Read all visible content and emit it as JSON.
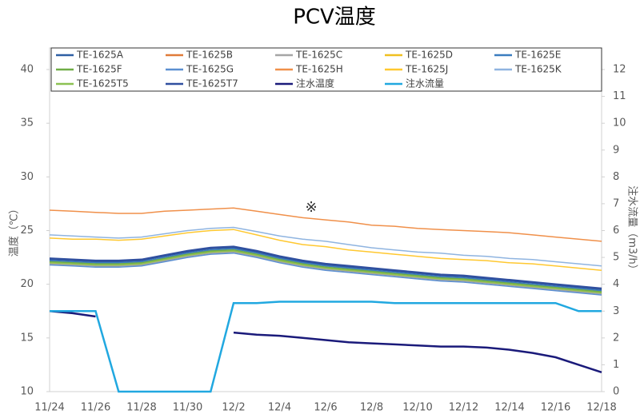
{
  "chart_data": {
    "type": "line",
    "title": "PCV温度",
    "y_label": "温度（℃）",
    "y2_label": "注水流量（m3/h）",
    "annotation": "※",
    "categories": [
      "11/24",
      null,
      "11/26",
      null,
      "11/28",
      null,
      "11/30",
      null,
      "12/2",
      null,
      "12/4",
      null,
      "12/6",
      null,
      "12/8",
      null,
      "12/10",
      null,
      "12/12",
      null,
      "12/14",
      null,
      "12/16",
      null,
      "12/18"
    ],
    "ylim": [
      10,
      40
    ],
    "yticks": [
      10,
      15,
      20,
      25,
      30,
      35,
      40
    ],
    "y2lim": [
      0,
      12
    ],
    "y2ticks": [
      0,
      1,
      2,
      3,
      4,
      5,
      6,
      7,
      8,
      9,
      10,
      11,
      12
    ],
    "grid": false,
    "legend": "top",
    "series": [
      {
        "name": "TE-1625A",
        "color": "#2e5fa3",
        "values": [
          22.3,
          22.2,
          22.1,
          22.1,
          22.2,
          22.6,
          23.0,
          23.3,
          23.4,
          23.0,
          22.5,
          22.1,
          21.8,
          21.6,
          21.4,
          21.2,
          21.0,
          20.8,
          20.7,
          20.5,
          20.3,
          20.1,
          19.9,
          19.7,
          19.5
        ]
      },
      {
        "name": "TE-1625B",
        "color": "#e07b39",
        "values": [
          22.1,
          22.0,
          21.9,
          21.9,
          22.0,
          22.4,
          22.8,
          23.1,
          23.2,
          22.8,
          22.3,
          21.9,
          21.6,
          21.4,
          21.2,
          21.0,
          20.8,
          20.6,
          20.5,
          20.3,
          20.1,
          19.9,
          19.7,
          19.5,
          19.3
        ]
      },
      {
        "name": "TE-1625C",
        "color": "#a5a5a5",
        "values": [
          21.9,
          21.8,
          21.7,
          21.7,
          21.8,
          22.2,
          22.6,
          22.9,
          23.0,
          22.6,
          22.1,
          21.7,
          21.4,
          21.2,
          21.0,
          20.8,
          20.6,
          20.4,
          20.3,
          20.1,
          19.9,
          19.7,
          19.5,
          19.3,
          19.1
        ]
      },
      {
        "name": "TE-1625D",
        "color": "#f0c020",
        "values": [
          22.0,
          21.9,
          21.8,
          21.8,
          21.9,
          22.3,
          22.7,
          23.0,
          23.1,
          22.7,
          22.2,
          21.8,
          21.5,
          21.3,
          21.1,
          20.9,
          20.7,
          20.5,
          20.4,
          20.2,
          20.0,
          19.8,
          19.6,
          19.4,
          19.2
        ]
      },
      {
        "name": "TE-1625E",
        "color": "#3b7dbf",
        "values": [
          22.2,
          22.1,
          22.0,
          22.0,
          22.1,
          22.5,
          22.9,
          23.2,
          23.3,
          22.9,
          22.4,
          22.0,
          21.7,
          21.5,
          21.3,
          21.1,
          20.9,
          20.7,
          20.6,
          20.4,
          20.2,
          20.0,
          19.8,
          19.6,
          19.4
        ]
      },
      {
        "name": "TE-1625F",
        "color": "#70ad47",
        "values": [
          22.1,
          22.0,
          21.9,
          21.9,
          22.0,
          22.4,
          22.8,
          23.1,
          23.2,
          22.8,
          22.3,
          21.9,
          21.6,
          21.4,
          21.2,
          21.0,
          20.8,
          20.6,
          20.5,
          20.3,
          20.1,
          19.9,
          19.7,
          19.5,
          19.3
        ]
      },
      {
        "name": "TE-1625G",
        "color": "#5b8fd1",
        "values": [
          21.8,
          21.7,
          21.6,
          21.6,
          21.7,
          22.1,
          22.5,
          22.8,
          22.9,
          22.5,
          22.0,
          21.6,
          21.3,
          21.1,
          20.9,
          20.7,
          20.5,
          20.3,
          20.2,
          20.0,
          19.8,
          19.6,
          19.4,
          19.2,
          19.0
        ]
      },
      {
        "name": "TE-1625H",
        "color": "#f0904a",
        "values": [
          26.9,
          26.8,
          26.7,
          26.6,
          26.6,
          26.8,
          26.9,
          27.0,
          27.1,
          26.8,
          26.5,
          26.2,
          26.0,
          25.8,
          25.5,
          25.4,
          25.2,
          25.1,
          25.0,
          24.9,
          24.8,
          24.6,
          24.4,
          24.2,
          24.0
        ]
      },
      {
        "name": "TE-1625J",
        "color": "#ffc830",
        "values": [
          24.3,
          24.2,
          24.2,
          24.1,
          24.2,
          24.5,
          24.8,
          25.0,
          25.1,
          24.6,
          24.1,
          23.7,
          23.5,
          23.2,
          23.0,
          22.8,
          22.6,
          22.4,
          22.3,
          22.2,
          22.0,
          21.9,
          21.7,
          21.5,
          21.3
        ]
      },
      {
        "name": "TE-1625K",
        "color": "#8fb4e0",
        "values": [
          24.6,
          24.5,
          24.4,
          24.3,
          24.4,
          24.7,
          25.0,
          25.2,
          25.3,
          24.9,
          24.5,
          24.2,
          24.0,
          23.7,
          23.4,
          23.2,
          23.0,
          22.9,
          22.7,
          22.6,
          22.4,
          22.3,
          22.1,
          21.9,
          21.7
        ]
      },
      {
        "name": "TE-1625T5",
        "color": "#8cc152",
        "values": [
          22.0,
          21.9,
          21.8,
          21.8,
          21.9,
          22.3,
          22.7,
          23.0,
          23.1,
          22.7,
          22.2,
          21.8,
          21.5,
          21.3,
          21.1,
          20.9,
          20.7,
          20.5,
          20.4,
          20.2,
          20.0,
          19.8,
          19.6,
          19.4,
          19.2
        ]
      },
      {
        "name": "TE-1625T7",
        "color": "#2f4f9f",
        "values": [
          22.4,
          22.3,
          22.2,
          22.2,
          22.3,
          22.7,
          23.1,
          23.4,
          23.5,
          23.1,
          22.6,
          22.2,
          21.9,
          21.7,
          21.5,
          21.3,
          21.1,
          20.9,
          20.8,
          20.6,
          20.4,
          20.2,
          20.0,
          19.8,
          19.6
        ]
      },
      {
        "name": "注水温度",
        "color": "#1a1a7a",
        "values": [
          17.5,
          17.3,
          17.0,
          null,
          null,
          null,
          null,
          null,
          15.5,
          15.3,
          15.2,
          15.0,
          14.8,
          14.6,
          14.5,
          14.4,
          14.3,
          14.2,
          14.2,
          14.1,
          13.9,
          13.6,
          13.2,
          12.5,
          11.8
        ]
      },
      {
        "name": "注水流量",
        "color": "#21a8e0",
        "axis": "y2",
        "values": [
          3.0,
          3.0,
          3.0,
          0,
          0,
          0,
          0,
          0,
          3.3,
          3.3,
          3.35,
          3.35,
          3.35,
          3.35,
          3.35,
          3.3,
          3.3,
          3.3,
          3.3,
          3.3,
          3.3,
          3.3,
          3.3,
          3.0,
          3.0
        ]
      }
    ]
  }
}
